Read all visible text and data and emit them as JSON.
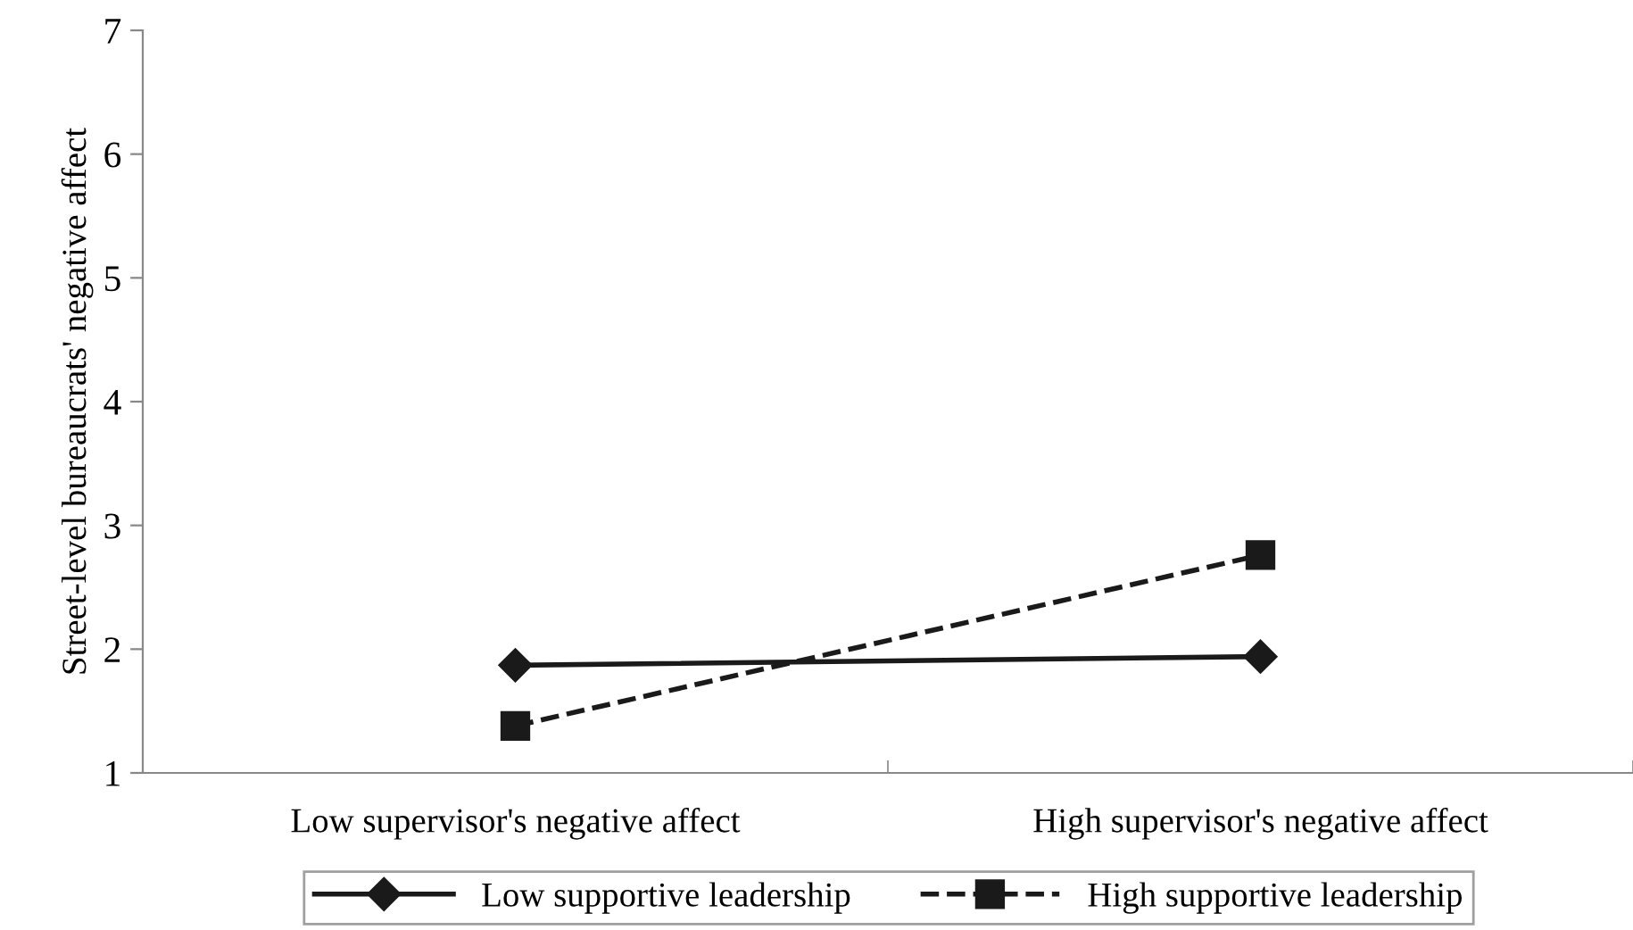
{
  "chart_data": {
    "type": "line",
    "ylabel": "Street-level bureaucrats' negative affect",
    "categories": [
      "Low supervisor's negative affect",
      "High supervisor's negative affect"
    ],
    "ylim": [
      1,
      7
    ],
    "yticks": [
      1,
      2,
      3,
      4,
      5,
      6,
      7
    ],
    "grid": false,
    "legend": "bottom",
    "series": [
      {
        "name": "Low supportive leadership",
        "color": "#1a1a1a",
        "values": [
          1.87,
          1.94
        ],
        "marker": "diamond",
        "line_style": "solid"
      },
      {
        "name": "High supportive leadership",
        "color": "#1a1a1a",
        "values": [
          1.38,
          2.76
        ],
        "marker": "square",
        "line_style": "dashed"
      }
    ]
  }
}
